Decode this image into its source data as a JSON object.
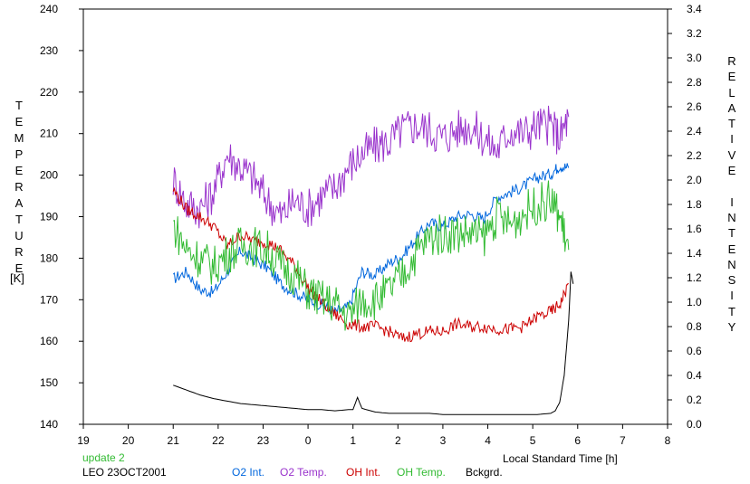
{
  "chart_data": {
    "type": "line",
    "title": "",
    "xlabel": "Local Standard Time [h]",
    "ylabel": "TEMPERATURE",
    "ylabel_unit": "[K]",
    "y2label": "RELATIVE INTENSITY",
    "xlim": [
      19,
      32
    ],
    "ylim": [
      140,
      240
    ],
    "y2lim": [
      0,
      3.4
    ],
    "grid": false,
    "x_tick_labels": [
      "19",
      "20",
      "21",
      "22",
      "23",
      "0",
      "1",
      "2",
      "3",
      "4",
      "5",
      "6",
      "7",
      "8"
    ],
    "y_ticks": [
      140,
      150,
      160,
      170,
      180,
      190,
      200,
      210,
      220,
      230,
      240
    ],
    "y2_ticks": [
      "0.0",
      "0.2",
      "0.4",
      "0.6",
      "0.8",
      "1.0",
      "1.2",
      "1.4",
      "1.6",
      "1.8",
      "2.0",
      "2.2",
      "2.4",
      "2.6",
      "2.8",
      "3.0",
      "3.2",
      "3.4"
    ],
    "series": [
      {
        "name": "O2 Int.",
        "axis": "right",
        "color": "#0066dd",
        "x": [
          21.0,
          21.3,
          21.6,
          21.9,
          22.2,
          22.5,
          22.8,
          23.1,
          23.4,
          23.7,
          24.0,
          24.3,
          24.6,
          24.9,
          25.2,
          25.5,
          25.8,
          26.1,
          26.4,
          26.7,
          27.0,
          27.3,
          27.6,
          27.9,
          28.2,
          28.5,
          28.8,
          29.1,
          29.4,
          29.6,
          29.8
        ],
        "y": [
          1.19,
          1.25,
          1.1,
          1.08,
          1.25,
          1.42,
          1.35,
          1.28,
          1.15,
          1.08,
          1.02,
          0.98,
          0.92,
          0.96,
          1.25,
          1.22,
          1.32,
          1.38,
          1.52,
          1.65,
          1.62,
          1.7,
          1.72,
          1.68,
          1.86,
          1.9,
          1.95,
          2.02,
          2.05,
          2.12,
          2.1
        ]
      },
      {
        "name": "O2 Temp.",
        "axis": "left",
        "color": "#9933cc",
        "x": [
          21.0,
          21.3,
          21.6,
          21.9,
          22.2,
          22.5,
          22.8,
          23.1,
          23.4,
          23.7,
          24.0,
          24.3,
          24.6,
          24.9,
          25.2,
          25.5,
          25.8,
          26.1,
          26.4,
          26.7,
          27.0,
          27.3,
          27.6,
          27.9,
          28.2,
          28.5,
          28.8,
          29.1,
          29.4,
          29.6,
          29.8
        ],
        "y": [
          199,
          193,
          192,
          196,
          205,
          202,
          199,
          194,
          190,
          194,
          192,
          195,
          197,
          202,
          205,
          207,
          208,
          211,
          212,
          211,
          209,
          211,
          212,
          209,
          206,
          211,
          210,
          212,
          212,
          209,
          214
        ]
      },
      {
        "name": "OH Int.",
        "axis": "right",
        "color": "#cc0000",
        "x": [
          21.0,
          21.3,
          21.6,
          21.9,
          22.2,
          22.5,
          22.8,
          23.1,
          23.4,
          23.7,
          24.0,
          24.3,
          24.6,
          24.9,
          25.2,
          25.5,
          25.8,
          26.1,
          26.4,
          26.7,
          27.0,
          27.3,
          27.6,
          27.9,
          28.2,
          28.5,
          28.8,
          29.1,
          29.4,
          29.6,
          29.8
        ],
        "y": [
          1.92,
          1.76,
          1.7,
          1.62,
          1.46,
          1.55,
          1.5,
          1.49,
          1.42,
          1.3,
          1.12,
          1.0,
          0.9,
          0.82,
          0.8,
          0.8,
          0.76,
          0.7,
          0.74,
          0.76,
          0.76,
          0.82,
          0.8,
          0.8,
          0.78,
          0.78,
          0.8,
          0.88,
          0.92,
          0.98,
          1.15
        ]
      },
      {
        "name": "OH Temp.",
        "axis": "left",
        "color": "#33bb33",
        "x": [
          21.0,
          21.3,
          21.6,
          21.9,
          22.2,
          22.5,
          22.8,
          23.1,
          23.4,
          23.7,
          24.0,
          24.3,
          24.6,
          24.9,
          25.2,
          25.5,
          25.8,
          26.1,
          26.4,
          26.7,
          27.0,
          27.3,
          27.6,
          27.9,
          28.2,
          28.5,
          28.8,
          29.1,
          29.4,
          29.6,
          29.8
        ],
        "y": [
          188,
          182,
          180,
          178,
          181,
          183,
          183,
          182,
          178,
          176,
          172,
          170,
          169,
          166,
          170,
          170,
          172,
          176,
          181,
          185,
          186,
          186,
          186,
          185,
          190,
          188,
          191,
          193,
          194,
          190,
          182
        ]
      },
      {
        "name": "Bckgrd.",
        "axis": "right",
        "color": "#000000",
        "x": [
          21.0,
          21.3,
          21.6,
          21.9,
          22.2,
          22.5,
          22.8,
          23.1,
          23.4,
          23.7,
          24.0,
          24.3,
          24.6,
          24.9,
          25.0,
          25.1,
          25.2,
          25.5,
          25.8,
          26.1,
          26.4,
          26.7,
          27.0,
          27.3,
          27.6,
          27.9,
          28.2,
          28.5,
          28.8,
          29.1,
          29.4,
          29.5,
          29.6,
          29.7,
          29.8,
          29.85,
          29.9
        ],
        "y": [
          0.32,
          0.28,
          0.24,
          0.21,
          0.19,
          0.17,
          0.16,
          0.15,
          0.14,
          0.13,
          0.12,
          0.12,
          0.11,
          0.12,
          0.12,
          0.22,
          0.13,
          0.1,
          0.09,
          0.09,
          0.09,
          0.09,
          0.08,
          0.08,
          0.08,
          0.08,
          0.08,
          0.08,
          0.08,
          0.08,
          0.09,
          0.11,
          0.18,
          0.4,
          0.85,
          1.25,
          1.15
        ]
      }
    ],
    "annotations": [
      {
        "text": "update 2",
        "color": "#33bb33"
      },
      {
        "text": "LEO 23OCT2001",
        "color": "#000000"
      }
    ]
  }
}
